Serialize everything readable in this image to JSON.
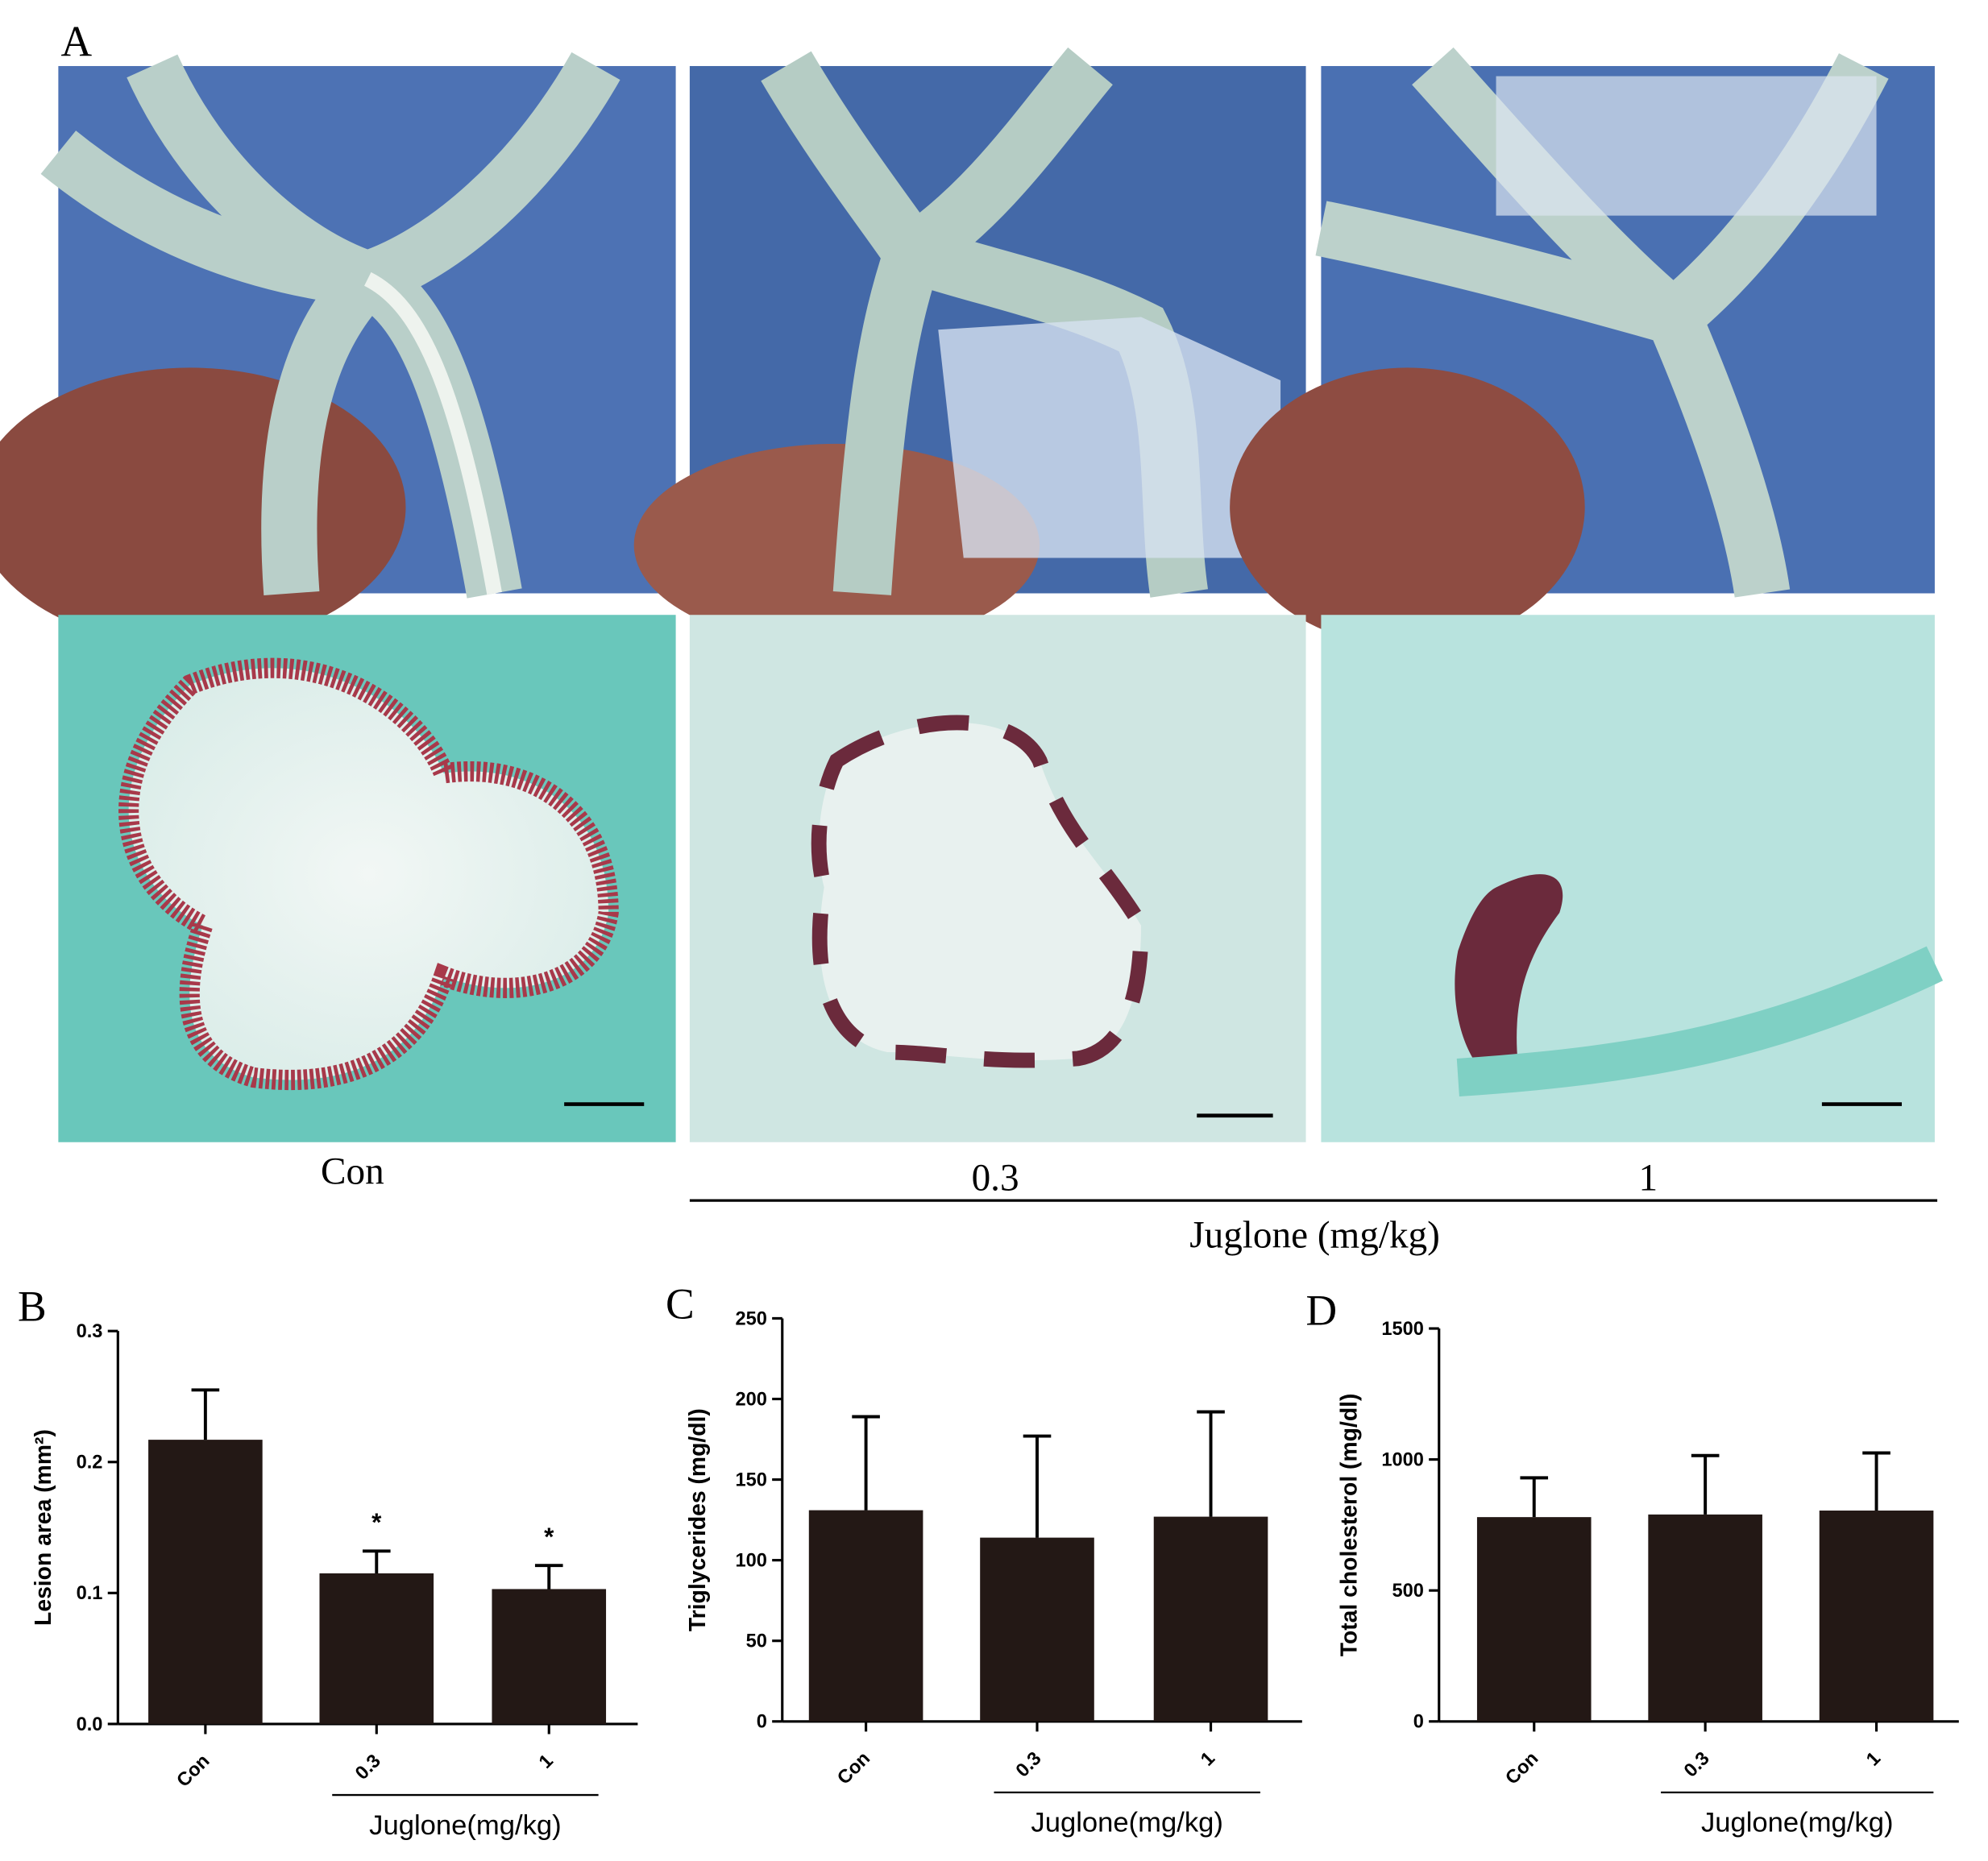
{
  "panel_a": {
    "label": "A",
    "groups": [
      "Con",
      "0.3",
      "1"
    ],
    "group_label": "Juglone (mg/kg)"
  },
  "chart_data": [
    {
      "type": "bar",
      "panel_label": "B",
      "y_label": "Lesion area (mm²)",
      "categories": [
        "Con",
        "0.3",
        "1"
      ],
      "group_label": "Juglone(mg/kg)",
      "values": [
        0.217,
        0.115,
        0.103
      ],
      "errors": [
        0.038,
        0.017,
        0.018
      ],
      "value_annotations": [
        null,
        "*",
        "*"
      ],
      "color": "#231815",
      "ylim": [
        0,
        0.3
      ],
      "yticks": [
        {
          "value": 0,
          "label": "0.0"
        },
        0.1,
        0.2,
        0.3
      ]
    },
    {
      "type": "bar",
      "panel_label": "C",
      "y_label": "Triglycerides (mg/dl)",
      "categories": [
        "Con",
        "0.3",
        "1"
      ],
      "group_label": "Juglone(mg/kg)",
      "values": [
        131,
        114,
        127
      ],
      "errors": [
        58,
        63,
        65
      ],
      "color": "#231815",
      "ylim": [
        0,
        250
      ],
      "yticks": [
        0,
        50,
        100,
        150,
        200,
        250
      ]
    },
    {
      "type": "bar",
      "panel_label": "D",
      "y_label": "Total cholesterol (mg/dl)",
      "categories": [
        "Con",
        "0.3",
        "1"
      ],
      "group_label": "Juglone(mg/kg)",
      "values": [
        780,
        790,
        805
      ],
      "errors": [
        150,
        225,
        220
      ],
      "color": "#231815",
      "ylim": [
        0,
        1500
      ],
      "yticks": [
        0,
        500,
        1000,
        1500
      ]
    }
  ]
}
